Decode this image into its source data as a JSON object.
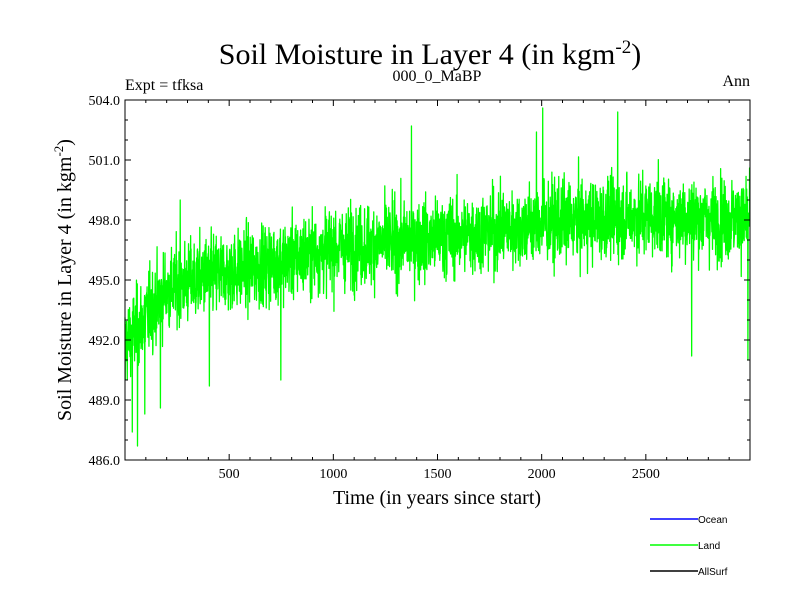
{
  "chart_data": {
    "type": "line",
    "title": "Soil Moisture in Layer 4 (in kgm",
    "title_sup": "-2",
    "title_end": ")",
    "subtitle_left": "Expt = tfksa",
    "subtitle_center": "000_0_MaBP",
    "subtitle_right": "Ann",
    "xlabel": "Time (in years since start)",
    "ylabel": "Soil Moisture in Layer 4 (in kgm",
    "ylabel_sup": "-2",
    "ylabel_end": ")",
    "xlim": [
      0,
      3000
    ],
    "ylim": [
      486.0,
      504.0
    ],
    "xticks": [
      500,
      1000,
      1500,
      2000,
      2500
    ],
    "xtick_labels": [
      "500",
      "1000",
      "1500",
      "2000",
      "2500"
    ],
    "yticks": [
      486.0,
      489.0,
      492.0,
      495.0,
      498.0,
      501.0,
      504.0
    ],
    "ytick_labels": [
      "486.0",
      "489.0",
      "492.0",
      "495.0",
      "498.0",
      "501.0",
      "504.0"
    ],
    "legend": [
      {
        "name": "Ocean",
        "color": "#0000ff"
      },
      {
        "name": "Land",
        "color": "#00ff00"
      },
      {
        "name": "AllSurf",
        "color": "#000000"
      }
    ],
    "series": [
      {
        "name": "Land",
        "color": "#00ff00",
        "n_points": 3000,
        "trend_x": [
          0,
          100,
          200,
          400,
          700,
          1000,
          1500,
          2000,
          2500,
          3000
        ],
        "trend_y": [
          491.8,
          493.2,
          494.5,
          495.2,
          495.8,
          496.6,
          497.1,
          497.8,
          498.2,
          498.0
        ],
        "noise_sd": 1.25,
        "notable_points": [
          {
            "x": 1,
            "y": 490.0
          },
          {
            "x": 35,
            "y": 487.4
          },
          {
            "x": 60,
            "y": 486.7
          },
          {
            "x": 95,
            "y": 488.3
          },
          {
            "x": 170,
            "y": 488.6
          },
          {
            "x": 265,
            "y": 499.0
          },
          {
            "x": 405,
            "y": 489.7
          },
          {
            "x": 748,
            "y": 490.0
          },
          {
            "x": 1375,
            "y": 502.7
          },
          {
            "x": 1975,
            "y": 502.4
          },
          {
            "x": 2005,
            "y": 503.6
          },
          {
            "x": 2012,
            "y": 500.0
          },
          {
            "x": 2365,
            "y": 503.4
          },
          {
            "x": 2720,
            "y": 491.2
          },
          {
            "x": 2990,
            "y": 491.0
          },
          {
            "x": 2998,
            "y": 500.6
          }
        ]
      }
    ]
  }
}
